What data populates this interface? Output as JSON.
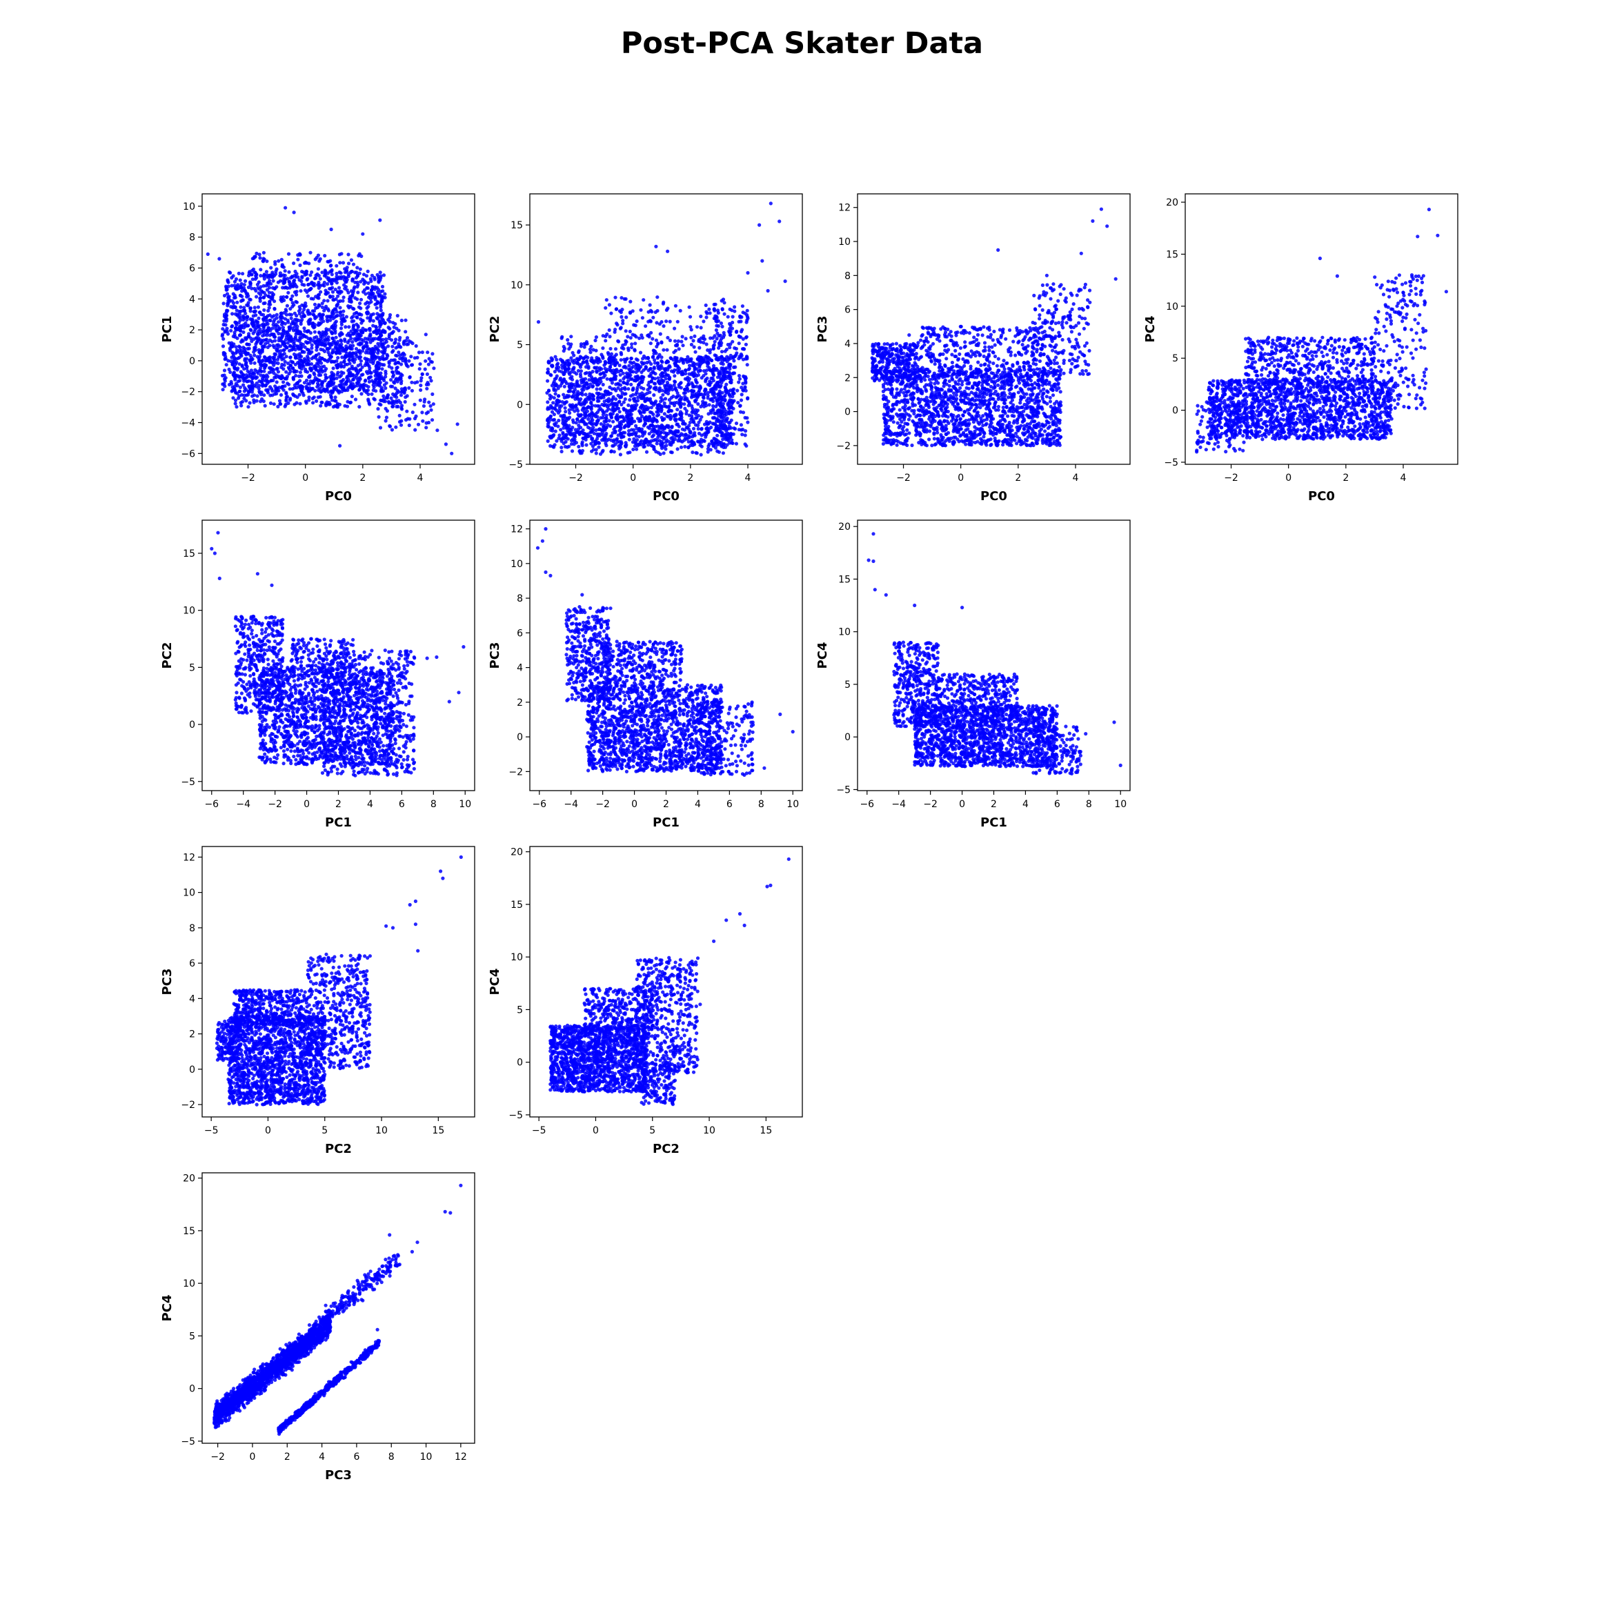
{
  "title": "Post-PCA Skater Data",
  "colors": {
    "points": "#0000ff",
    "axes": "#000000",
    "background": "#ffffff"
  },
  "chart_data": [
    {
      "type": "scatter",
      "xlabel": "PC0",
      "ylabel": "PC1",
      "xlim": [
        -3.6,
        5.9
      ],
      "ylim": [
        -6.7,
        10.8
      ],
      "xticks": [
        -2,
        0,
        2,
        4
      ],
      "yticks": [
        -6,
        -4,
        -2,
        0,
        2,
        4,
        6,
        8,
        10
      ],
      "density": [
        {
          "x": [
            -2.9,
            2.8
          ],
          "y": [
            -2.0,
            5.8
          ],
          "n": 1400
        },
        {
          "x": [
            -2.6,
            3.5
          ],
          "y": [
            -3.0,
            3.0
          ],
          "n": 900
        },
        {
          "x": [
            -2.0,
            2.0
          ],
          "y": [
            5.0,
            7.0
          ],
          "n": 120
        },
        {
          "x": [
            2.5,
            4.5
          ],
          "y": [
            -4.5,
            1.5
          ],
          "n": 150
        }
      ],
      "outliers": [
        [
          -0.7,
          9.9
        ],
        [
          -0.4,
          9.6
        ],
        [
          0.9,
          8.5
        ],
        [
          2.6,
          9.1
        ],
        [
          -3.4,
          6.9
        ],
        [
          -3.0,
          6.6
        ],
        [
          4.3,
          -4.0
        ],
        [
          4.9,
          -5.4
        ],
        [
          5.1,
          -6.0
        ],
        [
          5.3,
          -4.1
        ],
        [
          4.6,
          -4.5
        ],
        [
          4.2,
          1.7
        ],
        [
          1.2,
          -5.5
        ],
        [
          2.0,
          8.2
        ]
      ]
    },
    {
      "type": "scatter",
      "xlabel": "PC0",
      "ylabel": "PC2",
      "xlim": [
        -3.6,
        5.9
      ],
      "ylim": [
        -5.0,
        17.6
      ],
      "xticks": [
        -2,
        0,
        2,
        4
      ],
      "yticks": [
        -5,
        0,
        5,
        10,
        15
      ],
      "density": [
        {
          "x": [
            -3.0,
            3.5
          ],
          "y": [
            -3.6,
            4.0
          ],
          "n": 1500
        },
        {
          "x": [
            -2.5,
            3.3
          ],
          "y": [
            -4.2,
            5.8
          ],
          "n": 600
        },
        {
          "x": [
            2.8,
            4.0
          ],
          "y": [
            -3.5,
            9.0
          ],
          "n": 250
        },
        {
          "x": [
            -1.0,
            3.0
          ],
          "y": [
            5.0,
            9.0
          ],
          "n": 100
        }
      ],
      "outliers": [
        [
          4.8,
          16.8
        ],
        [
          5.1,
          15.3
        ],
        [
          4.4,
          15.0
        ],
        [
          5.3,
          10.3
        ],
        [
          4.5,
          12.0
        ],
        [
          1.2,
          12.8
        ],
        [
          0.8,
          13.2
        ],
        [
          -3.3,
          6.9
        ],
        [
          4.0,
          11.0
        ],
        [
          4.7,
          9.5
        ]
      ]
    },
    {
      "type": "scatter",
      "xlabel": "PC0",
      "ylabel": "PC3",
      "xlim": [
        -3.6,
        5.9
      ],
      "ylim": [
        -3.1,
        12.8
      ],
      "xticks": [
        -2,
        0,
        2,
        4
      ],
      "yticks": [
        -2,
        0,
        2,
        4,
        6,
        8,
        10,
        12
      ],
      "density": [
        {
          "x": [
            -2.7,
            3.5
          ],
          "y": [
            -2.0,
            2.5
          ],
          "n": 1600
        },
        {
          "x": [
            -3.1,
            -1.5
          ],
          "y": [
            1.8,
            4.0
          ],
          "n": 300
        },
        {
          "x": [
            -1.5,
            3.2
          ],
          "y": [
            2.0,
            5.0
          ],
          "n": 400
        },
        {
          "x": [
            2.5,
            4.5
          ],
          "y": [
            2.0,
            7.5
          ],
          "n": 200
        }
      ],
      "outliers": [
        [
          4.9,
          11.9
        ],
        [
          5.1,
          10.9
        ],
        [
          4.6,
          11.2
        ],
        [
          1.3,
          9.5
        ],
        [
          5.4,
          7.8
        ],
        [
          4.2,
          9.3
        ],
        [
          -1.8,
          4.5
        ],
        [
          3.0,
          8.0
        ]
      ]
    },
    {
      "type": "scatter",
      "xlabel": "PC0",
      "ylabel": "PC4",
      "xlim": [
        -3.6,
        5.9
      ],
      "ylim": [
        -5.2,
        20.8
      ],
      "xticks": [
        -2,
        0,
        2,
        4
      ],
      "yticks": [
        -5,
        0,
        5,
        10,
        15,
        20
      ],
      "density": [
        {
          "x": [
            -2.8,
            3.6
          ],
          "y": [
            -2.8,
            3.0
          ],
          "n": 1500
        },
        {
          "x": [
            -1.5,
            3.0
          ],
          "y": [
            2.0,
            7.0
          ],
          "n": 500
        },
        {
          "x": [
            3.0,
            4.8
          ],
          "y": [
            0.0,
            13.0
          ],
          "n": 200
        },
        {
          "x": [
            -3.2,
            -1.5
          ],
          "y": [
            -4.0,
            1.0
          ],
          "n": 100
        }
      ],
      "outliers": [
        [
          4.9,
          19.3
        ],
        [
          5.2,
          16.8
        ],
        [
          4.5,
          16.7
        ],
        [
          1.1,
          14.6
        ],
        [
          5.5,
          11.4
        ],
        [
          -3.2,
          -4.0
        ],
        [
          1.7,
          12.9
        ],
        [
          4.3,
          13.0
        ]
      ]
    },
    {
      "type": "scatter",
      "xlabel": "PC1",
      "ylabel": "PC2",
      "xlim": [
        -6.6,
        10.6
      ],
      "ylim": [
        -5.8,
        17.9
      ],
      "xticks": [
        -6,
        -4,
        -2,
        0,
        2,
        4,
        6,
        8,
        10
      ],
      "yticks": [
        -5,
        0,
        5,
        10,
        15
      ],
      "density": [
        {
          "x": [
            -3.0,
            5.5
          ],
          "y": [
            -3.5,
            5.0
          ],
          "n": 1400
        },
        {
          "x": [
            -4.5,
            -1.5
          ],
          "y": [
            1.0,
            9.5
          ],
          "n": 400
        },
        {
          "x": [
            1.0,
            6.8
          ],
          "y": [
            -4.5,
            6.5
          ],
          "n": 600
        },
        {
          "x": [
            -1.0,
            3.0
          ],
          "y": [
            4.5,
            7.5
          ],
          "n": 150
        }
      ],
      "outliers": [
        [
          -5.6,
          16.8
        ],
        [
          -6.0,
          15.4
        ],
        [
          -5.8,
          15.0
        ],
        [
          -3.1,
          13.2
        ],
        [
          -2.2,
          12.2
        ],
        [
          -5.5,
          12.8
        ],
        [
          9.9,
          6.8
        ],
        [
          9.6,
          2.8
        ],
        [
          9.0,
          2.0
        ],
        [
          7.6,
          5.8
        ],
        [
          8.2,
          5.9
        ]
      ]
    },
    {
      "type": "scatter",
      "xlabel": "PC1",
      "ylabel": "PC3",
      "xlim": [
        -6.6,
        10.6
      ],
      "ylim": [
        -3.1,
        12.5
      ],
      "xticks": [
        -6,
        -4,
        -2,
        0,
        2,
        4,
        6,
        8,
        10
      ],
      "yticks": [
        -2,
        0,
        2,
        4,
        6,
        8,
        10,
        12
      ],
      "density": [
        {
          "x": [
            -3.0,
            5.5
          ],
          "y": [
            -2.0,
            3.0
          ],
          "n": 1500
        },
        {
          "x": [
            -4.3,
            -1.5
          ],
          "y": [
            2.0,
            7.5
          ],
          "n": 400
        },
        {
          "x": [
            -2.0,
            3.0
          ],
          "y": [
            3.0,
            5.5
          ],
          "n": 300
        },
        {
          "x": [
            4.0,
            7.5
          ],
          "y": [
            -2.2,
            2.0
          ],
          "n": 200
        }
      ],
      "outliers": [
        [
          -5.6,
          12.0
        ],
        [
          -5.8,
          11.3
        ],
        [
          -6.1,
          10.9
        ],
        [
          -5.3,
          9.3
        ],
        [
          -5.6,
          9.5
        ],
        [
          10.0,
          0.3
        ],
        [
          9.2,
          1.3
        ],
        [
          8.2,
          -1.8
        ],
        [
          7.4,
          1.8
        ],
        [
          -3.3,
          8.2
        ]
      ]
    },
    {
      "type": "scatter",
      "xlabel": "PC1",
      "ylabel": "PC4",
      "xlim": [
        -6.6,
        10.6
      ],
      "ylim": [
        -5.1,
        20.6
      ],
      "xticks": [
        -6,
        -4,
        -2,
        0,
        2,
        4,
        6,
        8,
        10
      ],
      "yticks": [
        -5,
        0,
        5,
        10,
        15,
        20
      ],
      "density": [
        {
          "x": [
            -3.0,
            6.0
          ],
          "y": [
            -2.8,
            3.0
          ],
          "n": 1500
        },
        {
          "x": [
            -4.3,
            -1.5
          ],
          "y": [
            1.0,
            9.0
          ],
          "n": 400
        },
        {
          "x": [
            -1.5,
            3.5
          ],
          "y": [
            2.5,
            6.0
          ],
          "n": 300
        },
        {
          "x": [
            4.5,
            7.5
          ],
          "y": [
            -3.5,
            1.0
          ],
          "n": 150
        }
      ],
      "outliers": [
        [
          -5.6,
          19.3
        ],
        [
          -5.9,
          16.8
        ],
        [
          -5.6,
          16.7
        ],
        [
          -5.5,
          14.0
        ],
        [
          -4.8,
          13.5
        ],
        [
          9.6,
          1.4
        ],
        [
          10.0,
          -2.7
        ],
        [
          7.8,
          0.3
        ],
        [
          0.0,
          12.3
        ],
        [
          -3.0,
          12.5
        ]
      ]
    },
    {
      "type": "scatter",
      "xlabel": "PC2",
      "ylabel": "PC3",
      "xlim": [
        -5.8,
        18.2
      ],
      "ylim": [
        -2.7,
        12.6
      ],
      "xticks": [
        -5,
        0,
        5,
        10,
        15
      ],
      "yticks": [
        -2,
        0,
        2,
        4,
        6,
        8,
        10,
        12
      ],
      "density": [
        {
          "x": [
            -3.5,
            5.0
          ],
          "y": [
            -2.0,
            3.0
          ],
          "n": 1500
        },
        {
          "x": [
            -3.0,
            3.5
          ],
          "y": [
            2.5,
            4.5
          ],
          "n": 400
        },
        {
          "x": [
            3.5,
            9.0
          ],
          "y": [
            0.0,
            6.5
          ],
          "n": 500
        },
        {
          "x": [
            -4.5,
            -2.5
          ],
          "y": [
            0.5,
            2.8
          ],
          "n": 150
        }
      ],
      "outliers": [
        [
          17.0,
          12.0
        ],
        [
          15.2,
          11.2
        ],
        [
          15.4,
          10.8
        ],
        [
          12.5,
          9.3
        ],
        [
          13.0,
          9.5
        ],
        [
          13.0,
          8.2
        ],
        [
          13.2,
          6.7
        ],
        [
          11.0,
          8.0
        ],
        [
          10.4,
          8.1
        ]
      ]
    },
    {
      "type": "scatter",
      "xlabel": "PC2",
      "ylabel": "PC4",
      "xlim": [
        -5.8,
        18.2
      ],
      "ylim": [
        -5.2,
        20.5
      ],
      "xticks": [
        -5,
        0,
        5,
        10,
        15
      ],
      "yticks": [
        -5,
        0,
        5,
        10,
        15,
        20
      ],
      "density": [
        {
          "x": [
            -4.0,
            4.5
          ],
          "y": [
            -2.8,
            3.5
          ],
          "n": 1400
        },
        {
          "x": [
            3.5,
            9.0
          ],
          "y": [
            -1.0,
            10.0
          ],
          "n": 500
        },
        {
          "x": [
            -1.0,
            5.0
          ],
          "y": [
            3.0,
            7.0
          ],
          "n": 300
        },
        {
          "x": [
            4.0,
            7.0
          ],
          "y": [
            -4.0,
            0.0
          ],
          "n": 150
        }
      ],
      "outliers": [
        [
          17.0,
          19.3
        ],
        [
          15.4,
          16.8
        ],
        [
          15.1,
          16.7
        ],
        [
          12.7,
          14.1
        ],
        [
          13.1,
          13.0
        ],
        [
          11.5,
          13.5
        ],
        [
          10.4,
          11.5
        ],
        [
          9.2,
          5.5
        ],
        [
          6.8,
          -4.0
        ]
      ]
    },
    {
      "type": "scatter",
      "xlabel": "PC3",
      "ylabel": "PC4",
      "xlim": [
        -2.9,
        12.8
      ],
      "ylim": [
        -5.2,
        20.5
      ],
      "xticks": [
        -2,
        0,
        2,
        4,
        6,
        8,
        10,
        12
      ],
      "yticks": [
        -5,
        0,
        5,
        10,
        15,
        20
      ],
      "density": [
        {
          "band": true,
          "x0": -2.2,
          "x1": 4.5,
          "slope": 1.35,
          "intercept": 0.2,
          "spread": 1.7,
          "n": 1700
        },
        {
          "band": true,
          "x0": 1.5,
          "x1": 7.3,
          "slope": 1.45,
          "intercept": -6.2,
          "spread": 0.55,
          "n": 500
        },
        {
          "band": true,
          "x0": 4.0,
          "x1": 8.5,
          "slope": 1.35,
          "intercept": 1.0,
          "spread": 1.4,
          "n": 200
        }
      ],
      "outliers": [
        [
          12.0,
          19.3
        ],
        [
          11.1,
          16.8
        ],
        [
          11.4,
          16.7
        ],
        [
          9.5,
          13.9
        ],
        [
          9.2,
          13.0
        ],
        [
          7.9,
          14.6
        ],
        [
          7.2,
          5.6
        ],
        [
          -2.0,
          -1.9
        ]
      ]
    }
  ]
}
